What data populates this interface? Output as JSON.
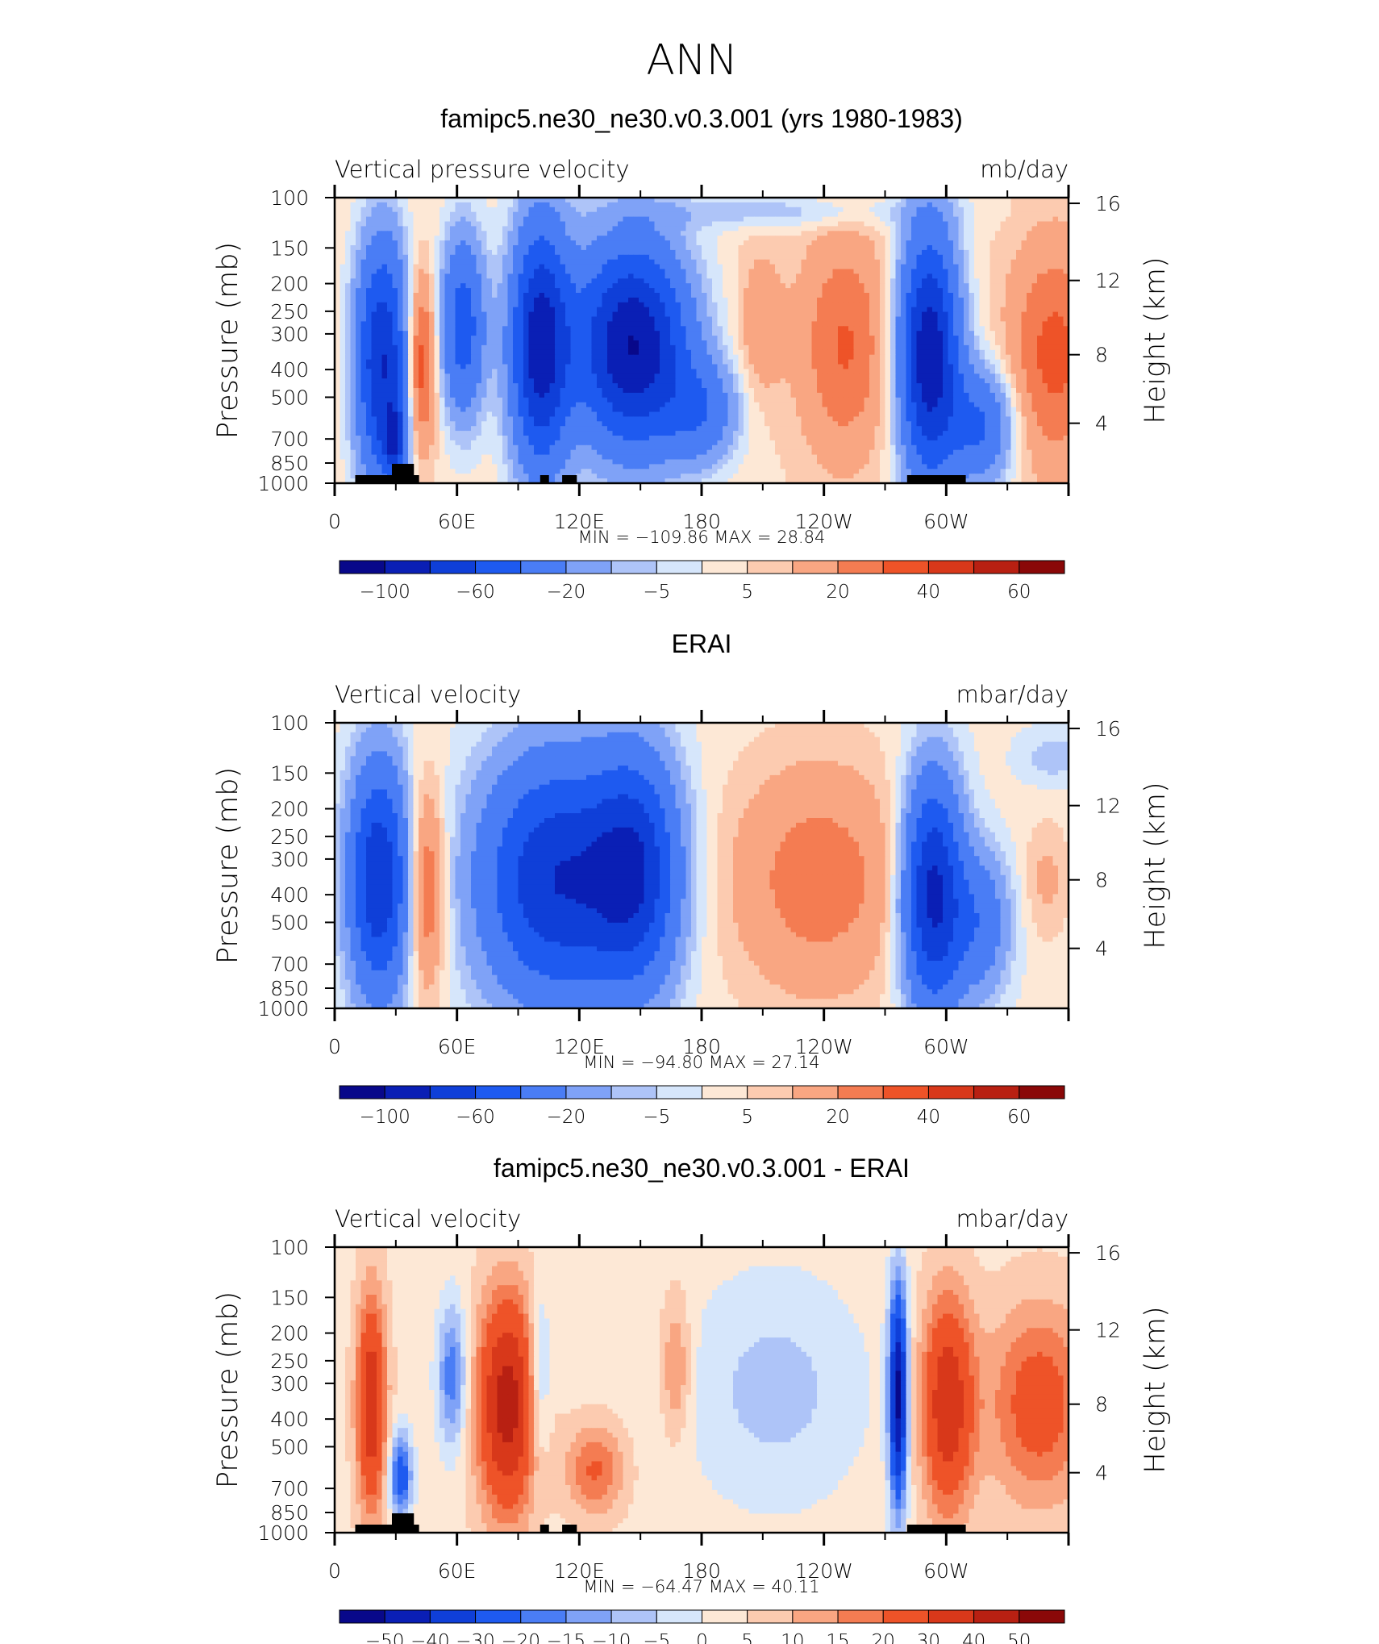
{
  "figure": {
    "title": "ANN"
  },
  "chart_data": [
    {
      "type": "heatmap",
      "title": "famipc5.ne30_ne30.v0.3.001 (yrs 1980-1983)",
      "subtitle_left": "Vertical pressure velocity",
      "subtitle_right": "mb/day",
      "ylabel": "Pressure (mb)",
      "ylabel_right": "Height (km)",
      "y_ticks": [
        "100",
        "150",
        "200",
        "250",
        "300",
        "400",
        "500",
        "700",
        "850",
        "1000"
      ],
      "y_right_ticks": [
        "16",
        "12",
        "8",
        "4"
      ],
      "x_ticks": [
        "0",
        "60E",
        "120E",
        "180",
        "120W",
        "60W"
      ],
      "stats": "MIN = −109.86   MAX =   28.84",
      "colorbar_ticks": [
        "−100",
        "−60",
        "−20",
        "−5",
        "5",
        "20",
        "40",
        "60"
      ],
      "levels": [
        -100,
        -80,
        -60,
        -40,
        -20,
        -10,
        -5,
        0,
        5,
        10,
        20,
        30,
        40,
        50,
        60
      ],
      "colors": [
        "#08088a",
        "#0a1fb5",
        "#0f3fd8",
        "#1e5af0",
        "#4a7df5",
        "#7fa2f7",
        "#aec4f8",
        "#d6e6fb",
        "#fde8d6",
        "#fccbb0",
        "#f9a682",
        "#f47c52",
        "#ee5328",
        "#d8381a",
        "#b82012",
        "#8a0808"
      ],
      "field": "model",
      "min": -109.86,
      "max": 28.84
    },
    {
      "type": "heatmap",
      "title": "ERAI",
      "subtitle_left": "Vertical velocity",
      "subtitle_right": "mbar/day",
      "ylabel": "Pressure (mb)",
      "ylabel_right": "Height (km)",
      "y_ticks": [
        "100",
        "150",
        "200",
        "250",
        "300",
        "400",
        "500",
        "700",
        "850",
        "1000"
      ],
      "y_right_ticks": [
        "16",
        "12",
        "8",
        "4"
      ],
      "x_ticks": [
        "0",
        "60E",
        "120E",
        "180",
        "120W",
        "60W"
      ],
      "stats": "MIN = −94.80   MAX =   27.14",
      "colorbar_ticks": [
        "−100",
        "−60",
        "−20",
        "−5",
        "5",
        "20",
        "40",
        "60"
      ],
      "levels": [
        -100,
        -80,
        -60,
        -40,
        -20,
        -10,
        -5,
        0,
        5,
        10,
        20,
        30,
        40,
        50,
        60
      ],
      "colors": [
        "#08088a",
        "#0a1fb5",
        "#0f3fd8",
        "#1e5af0",
        "#4a7df5",
        "#7fa2f7",
        "#aec4f8",
        "#d6e6fb",
        "#fde8d6",
        "#fccbb0",
        "#f9a682",
        "#f47c52",
        "#ee5328",
        "#d8381a",
        "#b82012",
        "#8a0808"
      ],
      "field": "obs",
      "min": -94.8,
      "max": 27.14
    },
    {
      "type": "heatmap",
      "title": "famipc5.ne30_ne30.v0.3.001 - ERAI",
      "subtitle_left": "Vertical velocity",
      "subtitle_right": "mbar/day",
      "ylabel": "Pressure (mb)",
      "ylabel_right": "Height (km)",
      "y_ticks": [
        "100",
        "150",
        "200",
        "250",
        "300",
        "400",
        "500",
        "700",
        "850",
        "1000"
      ],
      "y_right_ticks": [
        "16",
        "12",
        "8",
        "4"
      ],
      "x_ticks": [
        "0",
        "60E",
        "120E",
        "180",
        "120W",
        "60W"
      ],
      "stats": "MIN = −64.47   MAX =   40.11",
      "colorbar_ticks": [
        "−50",
        "−40",
        "−30",
        "−20",
        "−15",
        "−10",
        "−5",
        "0",
        "5",
        "10",
        "15",
        "20",
        "30",
        "40",
        "50"
      ],
      "levels": [
        -50,
        -40,
        -30,
        -20,
        -15,
        -10,
        -5,
        0,
        5,
        10,
        15,
        20,
        30,
        40,
        50
      ],
      "colors": [
        "#08088a",
        "#0a1fb5",
        "#0f3fd8",
        "#1e5af0",
        "#4a7df5",
        "#7fa2f7",
        "#aec4f8",
        "#d6e6fb",
        "#fde8d6",
        "#fccbb0",
        "#f9a682",
        "#f47c52",
        "#ee5328",
        "#d8381a",
        "#b82012",
        "#8a0808"
      ],
      "field": "diff",
      "min": -64.47,
      "max": 40.11
    }
  ]
}
